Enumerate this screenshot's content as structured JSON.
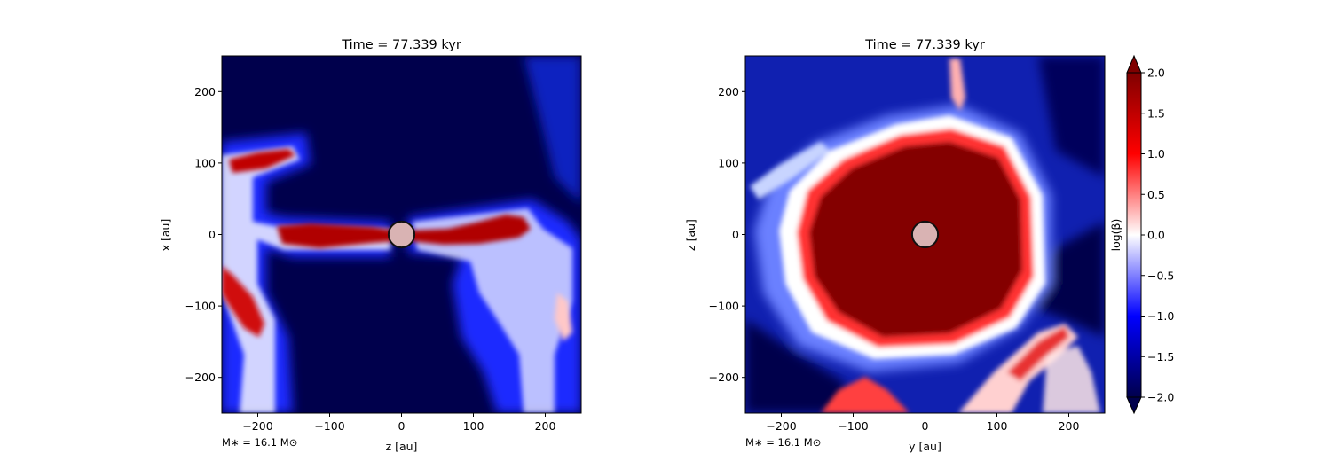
{
  "colors": {
    "low": "#00004c",
    "mid_low": "#0000ff",
    "mid": "#ffffff",
    "mid_high": "#ff0000",
    "high": "#800000",
    "sink_fill": "#d9b3b3",
    "sink_stroke": "#111111"
  },
  "chart_data": [
    {
      "type": "heatmap",
      "title": "Time = 77.339 kyr",
      "xlabel": "z [au]",
      "ylabel": "x [au]",
      "xlim": [
        -250,
        250
      ],
      "ylim": [
        -250,
        250
      ],
      "xticks": [
        -200,
        -100,
        0,
        100,
        200
      ],
      "yticks": [
        -200,
        -100,
        0,
        100,
        200
      ],
      "xticklabels": [
        "−200",
        "−100",
        "0",
        "100",
        "200"
      ],
      "yticklabels": [
        "−200",
        "−100",
        "0",
        "100",
        "200"
      ],
      "annotation": "M∗ = 16.1 M⊙",
      "sink": {
        "x": 0,
        "y": 0,
        "radius": 18
      },
      "field": "low-beta background with high-beta filament along z-axis (disk edge-on)"
    },
    {
      "type": "heatmap",
      "title": "Time = 77.339 kyr",
      "xlabel": "y [au]",
      "ylabel": "z [au]",
      "xlim": [
        -250,
        250
      ],
      "ylim": [
        -250,
        250
      ],
      "xticks": [
        -200,
        -100,
        0,
        100,
        200
      ],
      "yticks": [
        -200,
        -100,
        0,
        100,
        200
      ],
      "xticklabels": [
        "−200",
        "−100",
        "0",
        "100",
        "200"
      ],
      "yticklabels": [
        "−200",
        "−100",
        "0",
        "100",
        "200"
      ],
      "annotation": "M∗ = 16.1 M⊙",
      "sink": {
        "x": 0,
        "y": 0,
        "radius": 18
      },
      "field": "high-beta central bubble of radius ~150 au surrounded by low-beta envelope"
    }
  ],
  "colorbar": {
    "label": "log(β)",
    "min": -2.0,
    "max": 2.0,
    "ticks": [
      2.0,
      1.5,
      1.0,
      0.5,
      0.0,
      -0.5,
      -1.0,
      -1.5,
      -2.0
    ],
    "ticklabels": [
      "2.0",
      "1.5",
      "1.0",
      "0.5",
      "0.0",
      "−0.5",
      "−1.0",
      "−1.5",
      "−2.0"
    ],
    "extend": "both"
  }
}
